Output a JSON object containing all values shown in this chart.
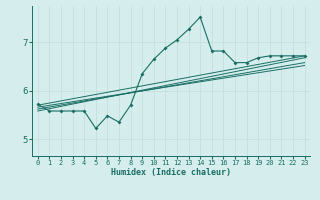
{
  "xlabel": "Humidex (Indice chaleur)",
  "bg_color": "#d5eeed",
  "line_color": "#1a6e64",
  "grid_color_major": "#c0ddd9",
  "grid_color_minor": "#c0ddd9",
  "xlim": [
    -0.5,
    23.5
  ],
  "ylim": [
    4.65,
    7.75
  ],
  "yticks": [
    5,
    6,
    7
  ],
  "xticks": [
    0,
    1,
    2,
    3,
    4,
    5,
    6,
    7,
    8,
    9,
    10,
    11,
    12,
    13,
    14,
    15,
    16,
    17,
    18,
    19,
    20,
    21,
    22,
    23
  ],
  "main_line_x": [
    0,
    1,
    2,
    3,
    4,
    5,
    6,
    7,
    8,
    9,
    10,
    11,
    12,
    13,
    14,
    15,
    16,
    17,
    18,
    19,
    20,
    21,
    22,
    23
  ],
  "main_line_y": [
    5.72,
    5.58,
    5.58,
    5.58,
    5.58,
    5.22,
    5.48,
    5.35,
    5.7,
    6.35,
    6.65,
    6.88,
    7.05,
    7.27,
    7.52,
    6.82,
    6.82,
    6.58,
    6.58,
    6.68,
    6.72,
    6.72,
    6.72,
    6.72
  ],
  "reg_lines": [
    {
      "x": [
        0,
        23
      ],
      "y": [
        5.58,
        6.68
      ]
    },
    {
      "x": [
        0,
        23
      ],
      "y": [
        5.62,
        6.58
      ]
    },
    {
      "x": [
        0,
        23
      ],
      "y": [
        5.66,
        6.52
      ]
    },
    {
      "x": [
        0,
        23
      ],
      "y": [
        5.7,
        6.72
      ]
    }
  ]
}
